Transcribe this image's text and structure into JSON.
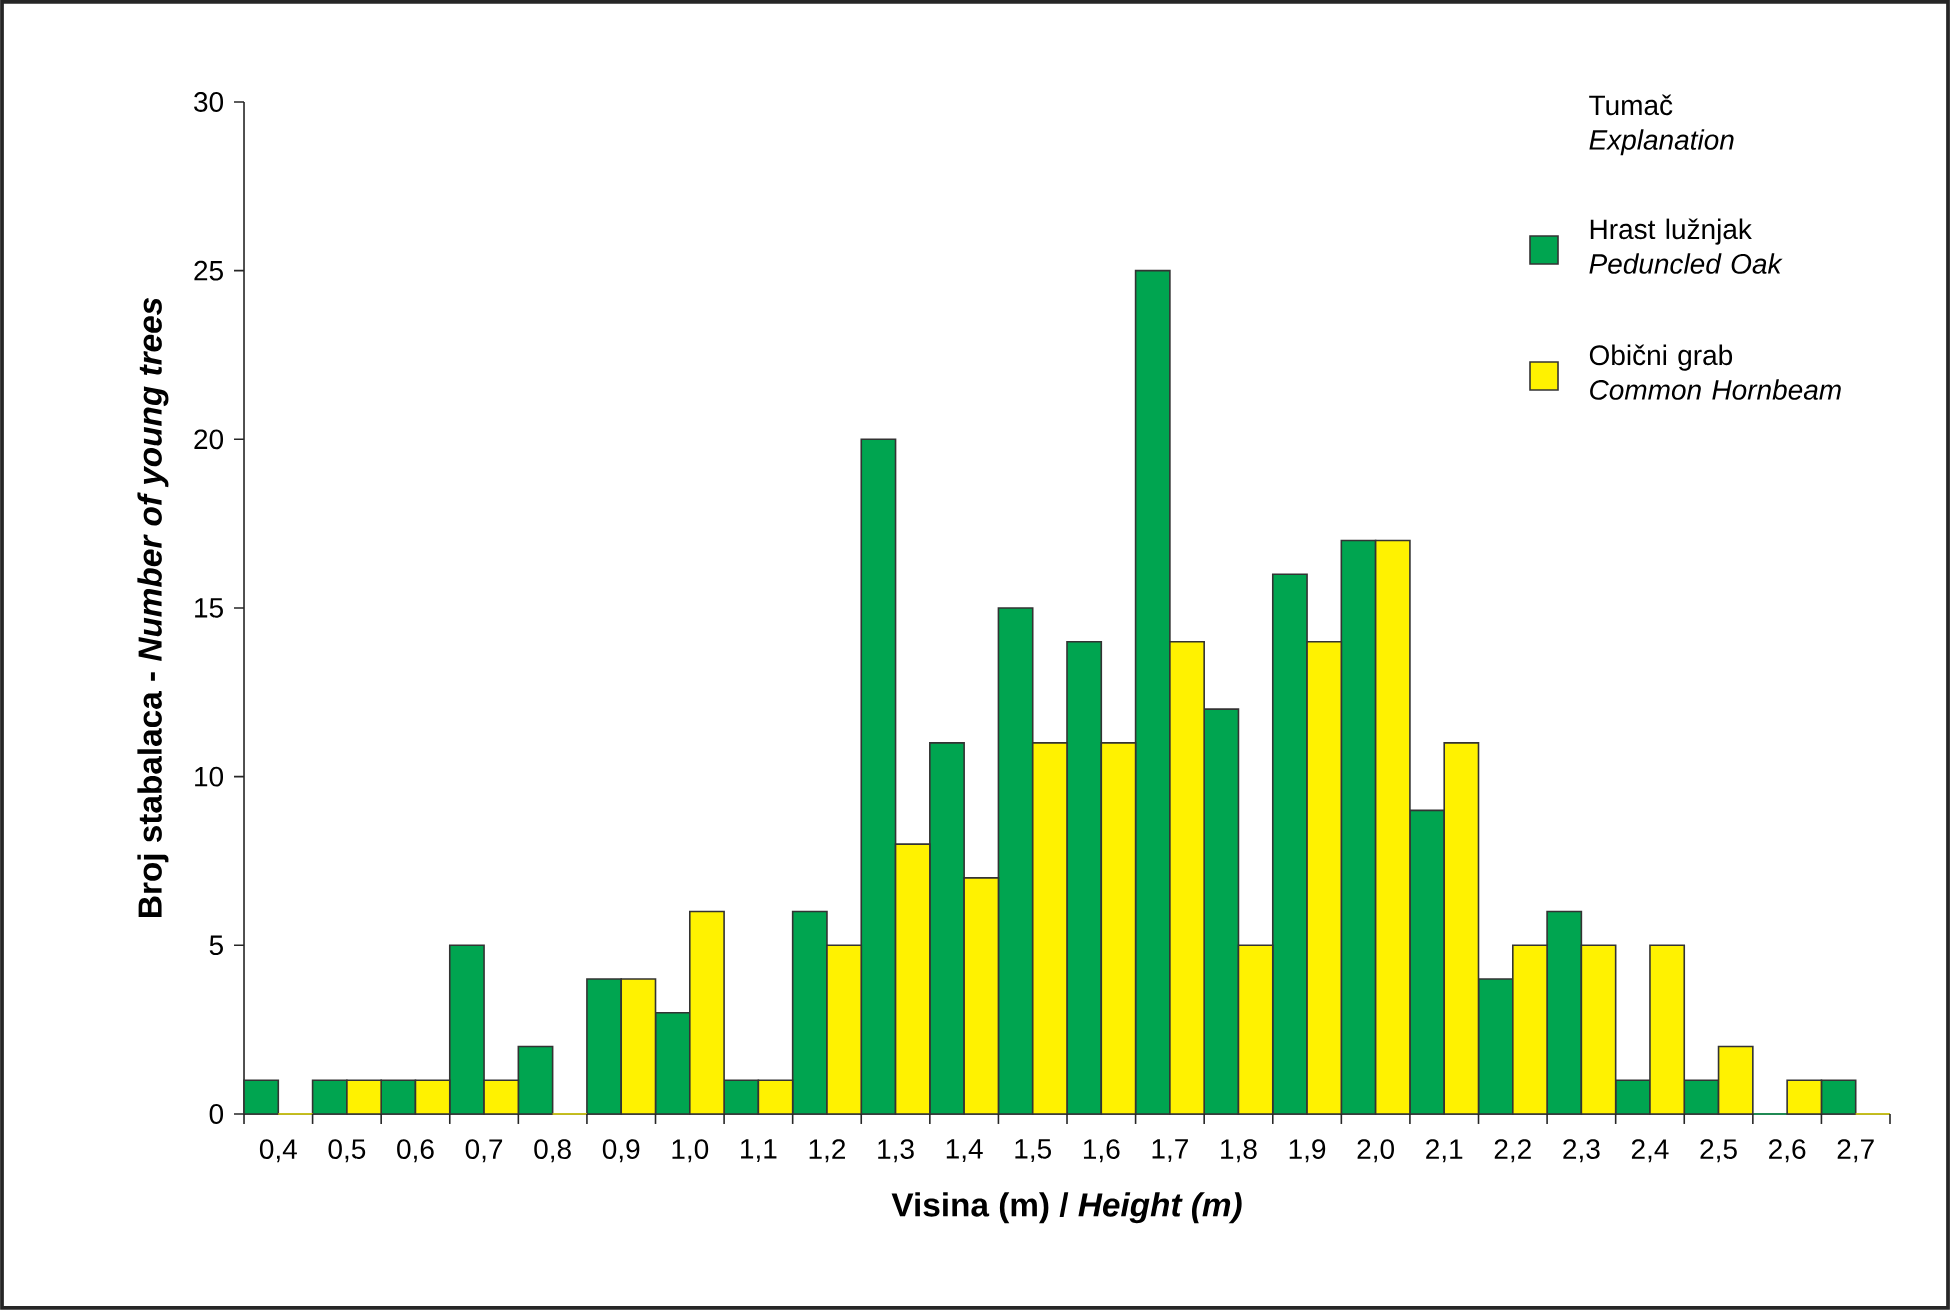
{
  "chart_data": {
    "type": "bar",
    "xlabel": "Visina (m) / *Height (m)*",
    "ylabel": "Broj stabalaca - *Number of young trees*",
    "legend_title": "Tumač *Explanation*",
    "legend": "top right",
    "categories": [
      "0,4",
      "0,5",
      "0,6",
      "0,7",
      "0,8",
      "0,9",
      "1,0",
      "1,1",
      "1,2",
      "1,3",
      "1,4",
      "1,5",
      "1,6",
      "1,7",
      "1,8",
      "1,9",
      "2,0",
      "2,1",
      "2,2",
      "2,3",
      "2,4",
      "2,5",
      "2,6",
      "2,7"
    ],
    "series": [
      {
        "name": "Hrast lužnjak *Peduncled Oak*",
        "color": "#00a550",
        "values": [
          1,
          1,
          1,
          5,
          2,
          4,
          3,
          1,
          6,
          20,
          11,
          15,
          14,
          25,
          12,
          16,
          17,
          9,
          4,
          6,
          1,
          1,
          0,
          1
        ]
      },
      {
        "name": "Obični grab *Common Hornbeam*",
        "color": "#fff200",
        "values": [
          0,
          1,
          1,
          1,
          0,
          4,
          6,
          1,
          5,
          8,
          7,
          11,
          11,
          14,
          5,
          14,
          17,
          11,
          5,
          5,
          5,
          2,
          1,
          0
        ]
      }
    ],
    "ylim": [
      0,
      30
    ],
    "yticks": [
      0,
      5,
      10,
      15,
      20,
      25,
      30
    ]
  }
}
